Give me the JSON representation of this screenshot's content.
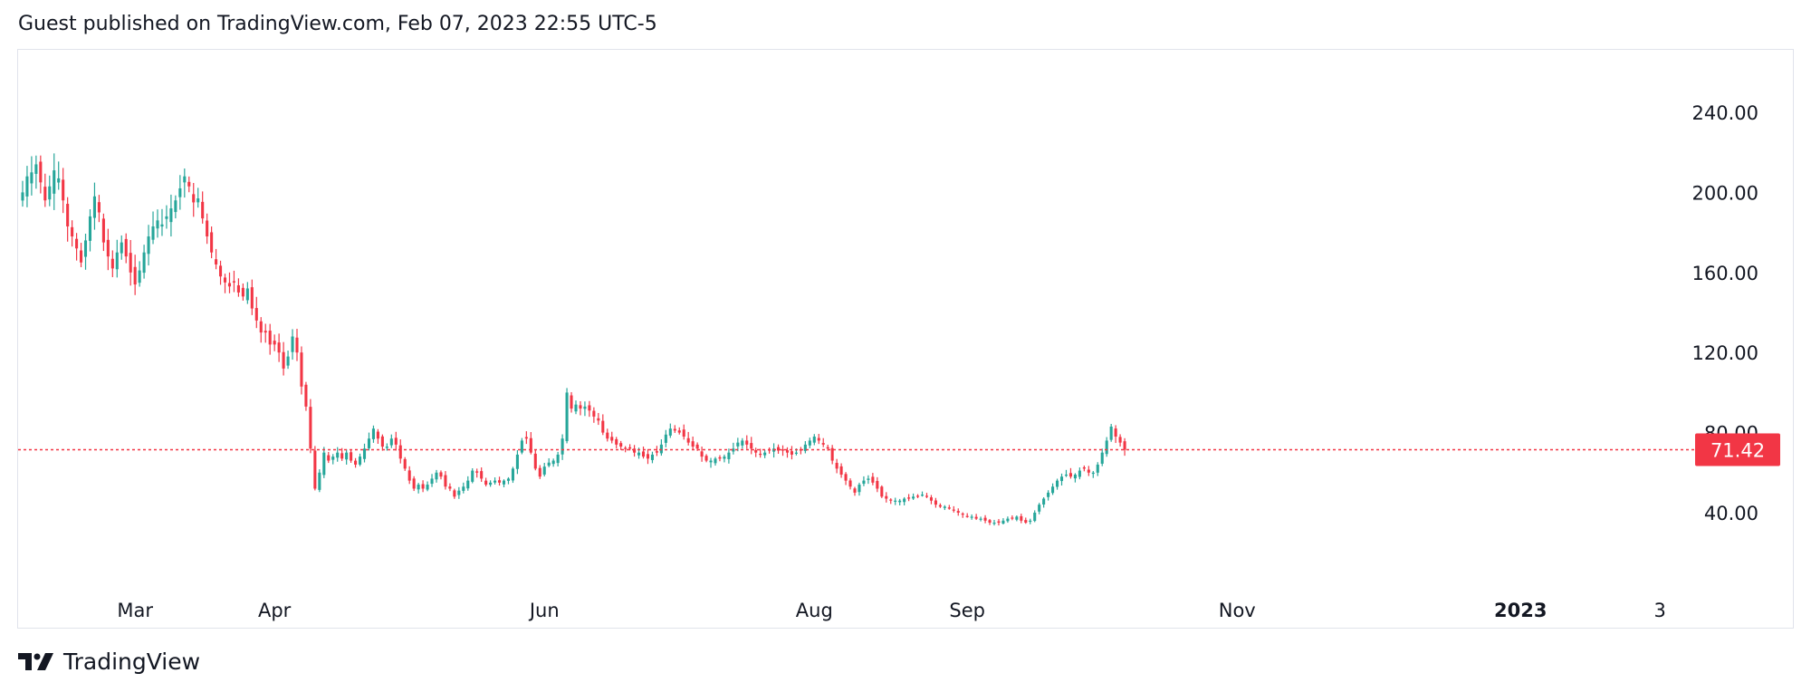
{
  "header": {
    "published_text": "Guest published on TradingView.com, Feb 07, 2023 22:55 UTC-5"
  },
  "footer": {
    "brand": "TradingView",
    "logo_icon": "tradingview-logo-icon"
  },
  "colors": {
    "up": "#26a69a",
    "down": "#f23645",
    "text": "#131722",
    "border": "#e0e3eb",
    "last_price_line": "#f23645"
  },
  "chart_data": {
    "type": "candlestick",
    "title": "",
    "xlabel": "",
    "ylabel": "",
    "grid": false,
    "legend": "none",
    "y_axis_position": "right",
    "ylim": [
      0,
      275
    ],
    "y_ticks": [
      "240.00",
      "200.00",
      "160.00",
      "120.00",
      "80.00",
      "40.00"
    ],
    "y_tick_values": [
      240,
      200,
      160,
      120,
      80,
      40
    ],
    "x_labels": [
      {
        "label": "Mar",
        "t": 25,
        "bold": false
      },
      {
        "label": "Apr",
        "t": 56,
        "bold": false
      },
      {
        "label": "Jun",
        "t": 116,
        "bold": false
      },
      {
        "label": "Aug",
        "t": 176,
        "bold": false
      },
      {
        "label": "Sep",
        "t": 210,
        "bold": false
      },
      {
        "label": "Nov",
        "t": 270,
        "bold": false
      },
      {
        "label": "2023",
        "t": 333,
        "bold": true
      },
      {
        "label": "3",
        "t": 364,
        "bold": false
      }
    ],
    "last_price": 71.42,
    "last_price_label": "71.42",
    "x_range": [
      -1,
      371
    ],
    "closes": [
      200,
      208,
      210,
      214,
      205,
      196,
      203,
      211,
      207,
      196,
      183,
      178,
      172,
      165,
      176,
      188,
      198,
      190,
      175,
      168,
      162,
      170,
      175,
      168,
      160,
      154,
      161,
      170,
      178,
      183,
      186,
      184,
      188,
      192,
      196,
      202,
      208,
      203,
      195,
      197,
      187,
      178,
      170,
      164,
      158,
      155,
      153,
      155,
      150,
      148,
      152,
      142,
      136,
      130,
      130,
      124,
      124,
      120,
      112,
      118,
      128,
      120,
      103,
      93,
      72,
      52,
      60,
      70,
      66,
      68,
      70,
      67,
      70,
      66,
      64,
      68,
      72,
      77,
      82,
      77,
      73,
      73,
      77,
      74,
      67,
      62,
      56,
      52,
      54,
      52,
      54,
      57,
      60,
      58,
      53,
      52,
      48,
      51,
      53,
      56,
      61,
      60,
      57,
      54,
      55,
      56,
      55,
      56,
      57,
      62,
      69,
      76,
      77,
      70,
      62,
      58,
      63,
      65,
      66,
      69,
      77,
      100,
      92,
      94,
      92,
      93,
      91,
      88,
      86,
      80,
      77,
      76,
      74,
      73,
      72,
      72,
      70,
      70,
      68,
      67,
      69,
      70,
      74,
      79,
      82,
      81,
      80,
      78,
      75,
      73,
      72,
      68,
      66,
      66,
      67,
      67,
      68,
      70,
      72,
      75,
      76,
      74,
      72,
      70,
      69,
      70,
      71,
      72,
      71,
      71,
      70,
      69,
      70,
      71,
      74,
      76,
      78,
      76,
      74,
      72,
      66,
      62,
      59,
      56,
      53,
      50,
      54,
      56,
      57,
      55,
      52,
      48,
      47,
      46,
      46,
      46,
      47,
      47,
      48,
      48,
      49,
      48,
      46,
      44,
      43,
      43,
      42,
      41,
      40,
      39,
      38,
      38,
      37,
      37,
      36,
      35,
      35,
      35,
      36,
      37,
      37,
      38,
      36,
      35,
      36,
      40,
      44,
      47,
      50,
      53,
      56,
      58,
      59,
      58,
      59,
      61,
      62,
      60,
      60,
      64,
      70,
      76,
      83,
      78,
      75,
      71.42
    ]
  }
}
